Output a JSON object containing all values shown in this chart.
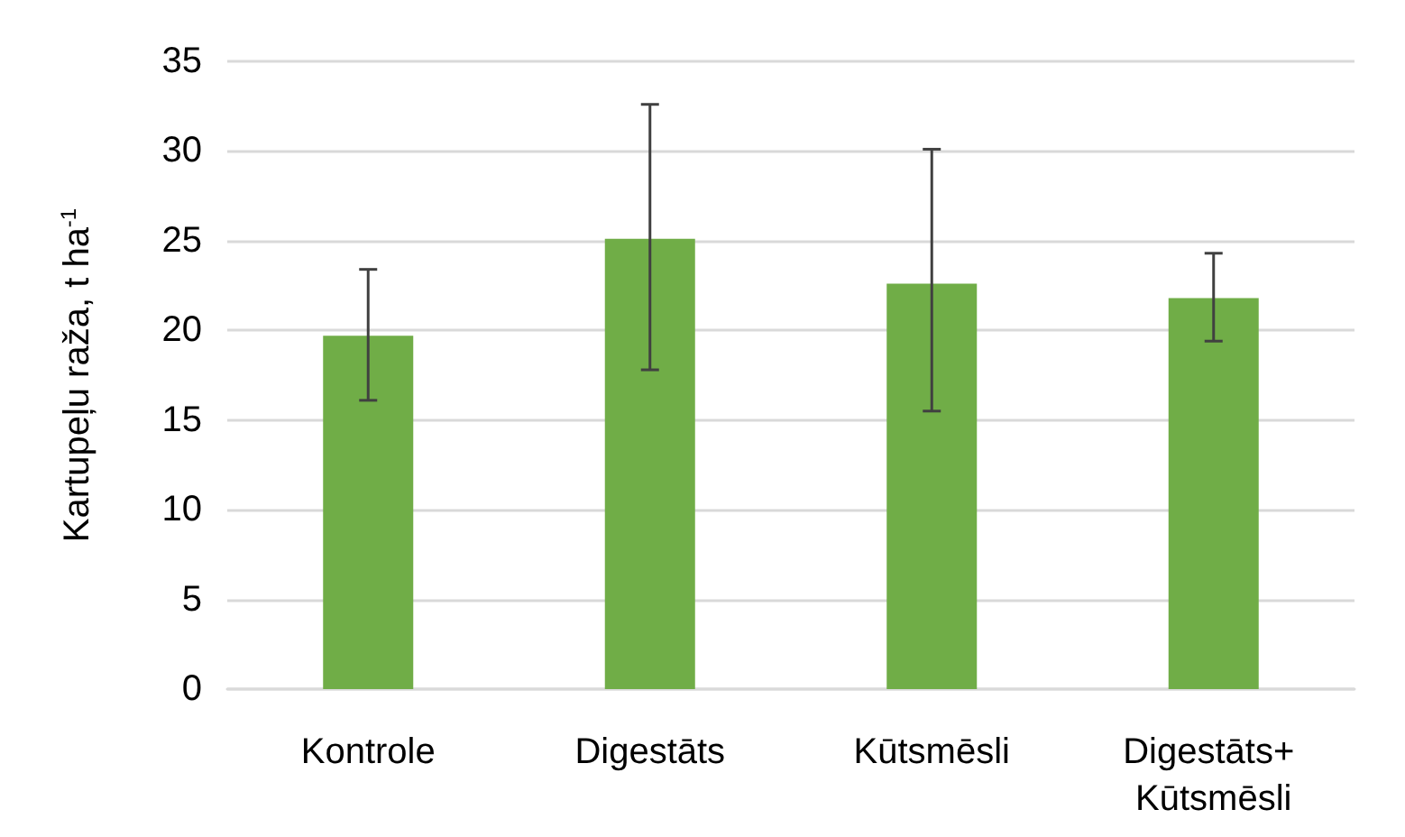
{
  "chart_data": {
    "type": "bar",
    "ylabel": "Kartupeļu raža, t ha$^{-1}$",
    "categories": [
      "Kontrole",
      "Digestāts",
      "Kūtsmēsli",
      "Digestāts+ Kūtsmēsli"
    ],
    "values": [
      19.7,
      25.1,
      22.6,
      21.8
    ],
    "color": "#70ad47",
    "errors": [
      [
        16.1,
        23.4
      ],
      [
        17.8,
        32.6
      ],
      [
        15.5,
        30.1
      ],
      [
        19.4,
        24.3
      ]
    ],
    "ylim": [
      0,
      35
    ],
    "yticks": [
      0,
      5,
      10,
      15,
      20,
      25,
      30,
      35
    ],
    "grid": "y"
  }
}
